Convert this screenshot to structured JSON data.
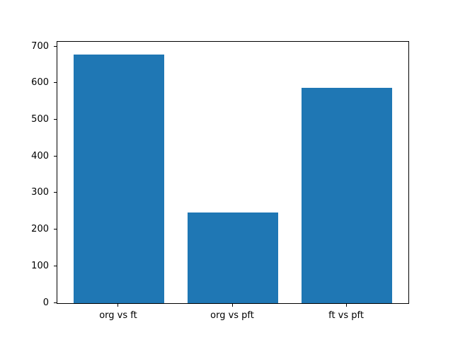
{
  "chart_data": {
    "type": "bar",
    "title": "",
    "xlabel": "",
    "ylabel": "",
    "categories": [
      "org vs ft",
      "org vs pft",
      "ft vs pft"
    ],
    "values": [
      680,
      248,
      588
    ],
    "ylim": [
      0,
      714
    ],
    "yticks": [
      0,
      100,
      200,
      300,
      400,
      500,
      600,
      700
    ],
    "bar_color": "#1f77b4",
    "axes_color": "#000000",
    "background_color": "#ffffff",
    "grid": false,
    "legend": null
  }
}
